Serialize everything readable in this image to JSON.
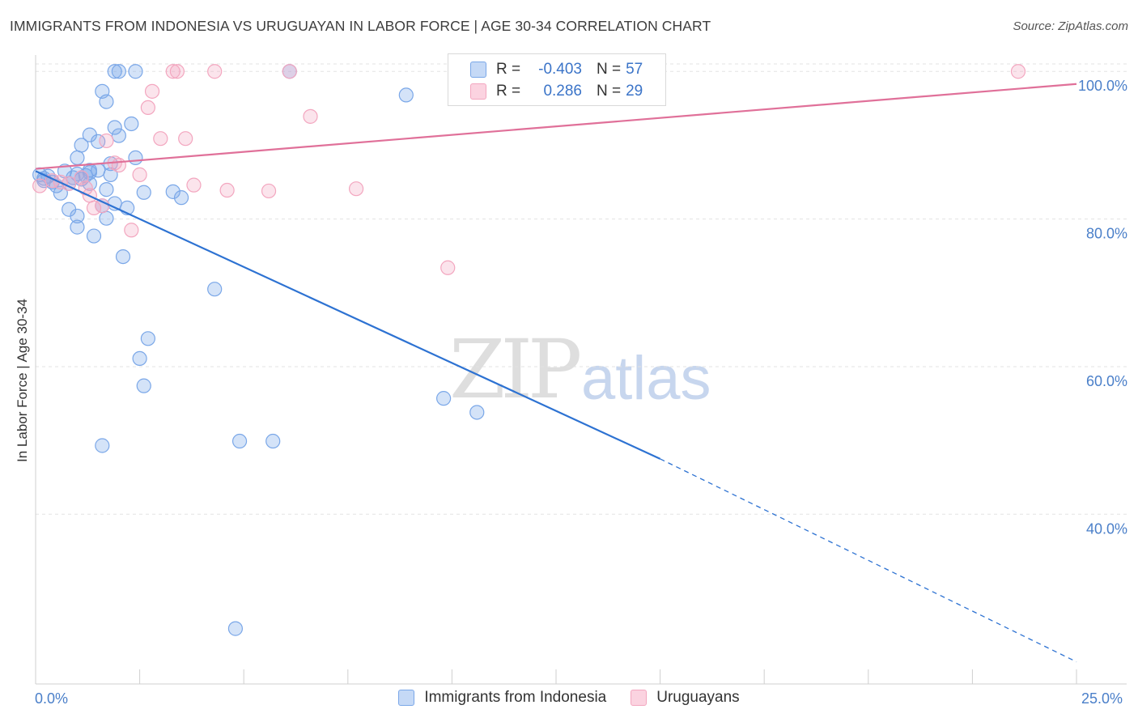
{
  "chart_data": {
    "type": "scatter",
    "title": "IMMIGRANTS FROM INDONESIA VS URUGUAYAN IN LABOR FORCE | AGE 30-34 CORRELATION CHART",
    "source": "Source: ZipAtlas.com",
    "xlabel": "",
    "ylabel": "In Labor Force | Age 30-34",
    "xlim": [
      0,
      25
    ],
    "ylim": [
      17,
      102
    ],
    "x_tick_labels": [
      "0.0%",
      "25.0%"
    ],
    "y_ticks": [
      40,
      60,
      80,
      100
    ],
    "y_tick_labels": [
      "40.0%",
      "60.0%",
      "80.0%",
      "100.0%"
    ],
    "grid": true,
    "watermark": [
      "ZIP",
      "atlas"
    ],
    "legend": {
      "position": "top-center",
      "r_label": "R =",
      "n_label": "N =",
      "entries": [
        {
          "name": "Immigrants from Indonesia",
          "r": "-0.403",
          "n": "57",
          "color": "#7aa7e8"
        },
        {
          "name": "Uruguayans",
          "r": "0.286",
          "n": "29",
          "color": "#f3a6bf"
        }
      ]
    },
    "series": [
      {
        "name": "Immigrants from Indonesia",
        "color": "#7aa7e8",
        "line_color": "#2d72d2",
        "trend": {
          "x0": 0,
          "y0": 86.5,
          "x1": 15,
          "y1": 47.5,
          "dash_to_x": 25,
          "dash_to_y": 20
        },
        "points": [
          [
            0.1,
            86.0
          ],
          [
            0.2,
            85.5
          ],
          [
            0.3,
            85.8
          ],
          [
            0.4,
            85.0
          ],
          [
            0.5,
            84.5
          ],
          [
            0.2,
            85.2
          ],
          [
            0.6,
            83.5
          ],
          [
            0.8,
            84.8
          ],
          [
            0.9,
            85.6
          ],
          [
            1.0,
            86.1
          ],
          [
            1.1,
            85.4
          ],
          [
            1.2,
            85.9
          ],
          [
            0.7,
            86.5
          ],
          [
            1.3,
            86.6
          ],
          [
            0.8,
            81.3
          ],
          [
            1.0,
            78.9
          ],
          [
            1.0,
            80.4
          ],
          [
            1.3,
            84.8
          ],
          [
            1.3,
            86.3
          ],
          [
            1.4,
            77.7
          ],
          [
            1.5,
            86.6
          ],
          [
            1.6,
            81.8
          ],
          [
            1.7,
            80.1
          ],
          [
            1.7,
            84.0
          ],
          [
            1.8,
            86.0
          ],
          [
            1.8,
            87.5
          ],
          [
            1.0,
            88.3
          ],
          [
            1.1,
            90.0
          ],
          [
            1.3,
            91.4
          ],
          [
            1.5,
            90.5
          ],
          [
            1.6,
            97.3
          ],
          [
            1.7,
            95.9
          ],
          [
            1.9,
            82.1
          ],
          [
            1.9,
            92.4
          ],
          [
            2.0,
            91.3
          ],
          [
            2.1,
            74.9
          ],
          [
            2.2,
            81.5
          ],
          [
            2.3,
            92.9
          ],
          [
            2.4,
            88.3
          ],
          [
            2.6,
            83.6
          ],
          [
            3.3,
            83.7
          ],
          [
            3.5,
            82.9
          ],
          [
            4.3,
            70.5
          ],
          [
            2.7,
            63.8
          ],
          [
            2.5,
            61.1
          ],
          [
            2.6,
            57.4
          ],
          [
            1.6,
            49.3
          ],
          [
            4.9,
            49.9
          ],
          [
            5.7,
            49.9
          ],
          [
            4.8,
            24.5
          ],
          [
            1.9,
            100.0
          ],
          [
            2.0,
            100.0
          ],
          [
            2.4,
            100.0
          ],
          [
            6.1,
            100.0
          ],
          [
            8.9,
            96.8
          ],
          [
            9.8,
            55.7
          ],
          [
            10.6,
            53.8
          ]
        ]
      },
      {
        "name": "Uruguayans",
        "color": "#f3a6bf",
        "line_color": "#e07099",
        "trend": {
          "x0": 0,
          "y0": 86.8,
          "x1": 25,
          "y1": 98.3
        },
        "points": [
          [
            0.1,
            84.5
          ],
          [
            0.4,
            85.2
          ],
          [
            0.6,
            85.0
          ],
          [
            0.8,
            84.8
          ],
          [
            1.1,
            85.6
          ],
          [
            1.3,
            83.2
          ],
          [
            1.4,
            81.5
          ],
          [
            1.6,
            81.8
          ],
          [
            1.7,
            90.6
          ],
          [
            1.9,
            87.6
          ],
          [
            2.0,
            87.3
          ],
          [
            2.3,
            78.5
          ],
          [
            2.5,
            86.0
          ],
          [
            2.7,
            95.1
          ],
          [
            2.8,
            97.3
          ],
          [
            3.0,
            90.9
          ],
          [
            3.3,
            100.0
          ],
          [
            3.4,
            100.0
          ],
          [
            3.6,
            90.9
          ],
          [
            3.8,
            84.6
          ],
          [
            4.3,
            100.0
          ],
          [
            4.6,
            83.9
          ],
          [
            5.6,
            83.8
          ],
          [
            6.1,
            100.0
          ],
          [
            6.6,
            93.9
          ],
          [
            7.7,
            84.1
          ],
          [
            9.9,
            73.4
          ],
          [
            23.6,
            100.0
          ],
          [
            1.2,
            84.2
          ]
        ]
      }
    ]
  }
}
